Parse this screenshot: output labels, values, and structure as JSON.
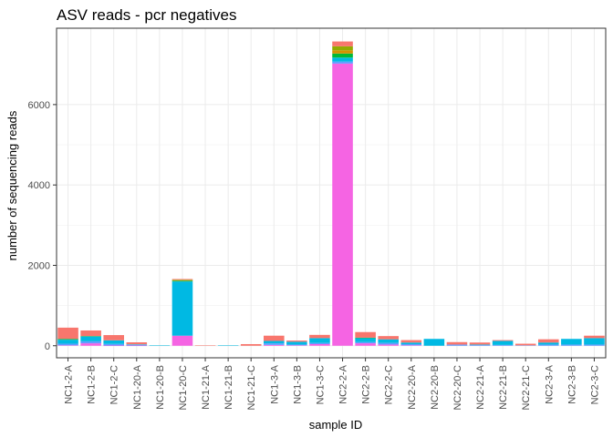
{
  "chart_data": {
    "type": "bar",
    "stacked": true,
    "title": "ASV reads - pcr negatives",
    "xlabel": "sample ID",
    "ylabel": "number of sequencing reads",
    "ylim": [
      -300,
      7900
    ],
    "yticks": [
      0,
      2000,
      4000,
      6000
    ],
    "grid": true,
    "legend": "none",
    "categories": [
      "NC1-2-A",
      "NC1-2-B",
      "NC1-2-C",
      "NC1-20-A",
      "NC1-20-B",
      "NC1-20-C",
      "NC1-21-A",
      "NC1-21-B",
      "NC1-21-C",
      "NC1-3-A",
      "NC1-3-B",
      "NC1-3-C",
      "NC2-2-A",
      "NC2-2-B",
      "NC2-2-C",
      "NC2-20-A",
      "NC2-20-B",
      "NC2-20-C",
      "NC2-21-A",
      "NC2-21-B",
      "NC2-21-C",
      "NC2-3-A",
      "NC2-3-B",
      "NC2-3-C"
    ],
    "series": [
      {
        "color": "#F564E3",
        "values": [
          10,
          60,
          5,
          5,
          0,
          250,
          0,
          0,
          0,
          20,
          10,
          40,
          7020,
          60,
          30,
          10,
          0,
          0,
          0,
          0,
          0,
          0,
          0,
          0
        ]
      },
      {
        "color": "#619CFF",
        "values": [
          40,
          50,
          40,
          20,
          0,
          0,
          0,
          0,
          0,
          40,
          20,
          30,
          50,
          30,
          40,
          30,
          0,
          30,
          20,
          20,
          10,
          30,
          30,
          30
        ]
      },
      {
        "color": "#00B9E3",
        "values": [
          100,
          120,
          90,
          10,
          10,
          1350,
          0,
          10,
          0,
          60,
          70,
          120,
          100,
          100,
          90,
          40,
          170,
          0,
          10,
          100,
          0,
          50,
          140,
          160
        ]
      },
      {
        "color": "#00BA38",
        "values": [
          20,
          10,
          0,
          0,
          0,
          20,
          0,
          0,
          0,
          0,
          0,
          0,
          100,
          10,
          0,
          0,
          0,
          0,
          0,
          0,
          0,
          0,
          0,
          0
        ]
      },
      {
        "color": "#D39200",
        "values": [
          0,
          0,
          0,
          0,
          0,
          10,
          0,
          0,
          0,
          0,
          0,
          0,
          80,
          0,
          0,
          0,
          0,
          0,
          0,
          0,
          0,
          0,
          0,
          0
        ]
      },
      {
        "color": "#93AA00",
        "values": [
          0,
          0,
          0,
          0,
          0,
          10,
          0,
          0,
          0,
          0,
          0,
          0,
          100,
          0,
          0,
          0,
          0,
          0,
          0,
          0,
          0,
          0,
          0,
          0
        ]
      },
      {
        "color": "#F8766D",
        "values": [
          280,
          140,
          130,
          50,
          0,
          20,
          10,
          0,
          40,
          130,
          30,
          80,
          120,
          140,
          80,
          60,
          0,
          60,
          50,
          20,
          40,
          80,
          0,
          60
        ]
      }
    ]
  }
}
